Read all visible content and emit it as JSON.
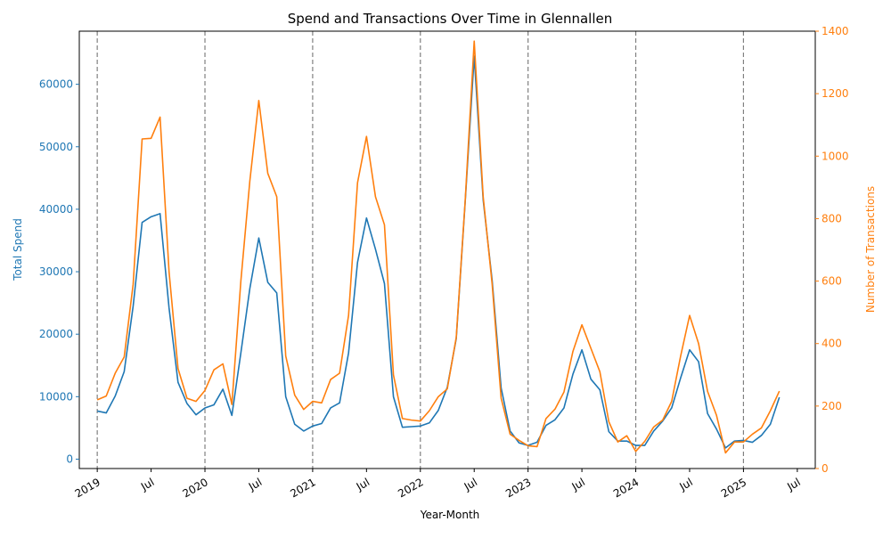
{
  "chart_data": {
    "type": "line",
    "title": "Spend and Transactions Over Time in Glennallen",
    "xlabel": "Year-Month",
    "x_tick_labels": [
      "2019",
      "Jul",
      "2020",
      "Jul",
      "2021",
      "Jul",
      "2022",
      "Jul",
      "2023",
      "Jul",
      "2024",
      "Jul",
      "2025",
      "Jul"
    ],
    "x_tick_months": [
      0,
      6,
      12,
      18,
      24,
      30,
      36,
      42,
      48,
      54,
      60,
      66,
      72,
      78
    ],
    "year_lines_months": [
      0,
      12,
      24,
      36,
      48,
      60,
      72
    ],
    "xlim_months": [
      -2,
      80
    ],
    "x_start": "2019-01",
    "left_axis": {
      "label": "Total Spend",
      "color": "#1f77b4",
      "ylim": [
        -1500,
        68500
      ],
      "ticks": [
        0,
        10000,
        20000,
        30000,
        40000,
        50000,
        60000
      ],
      "tick_labels": [
        "0",
        "10000",
        "20000",
        "30000",
        "40000",
        "50000",
        "60000"
      ]
    },
    "right_axis": {
      "label": "Number of Transactions",
      "color": "#ff7f0e",
      "ylim": [
        0,
        1400
      ],
      "ticks": [
        0,
        200,
        400,
        600,
        800,
        1000,
        1200,
        1400
      ],
      "tick_labels": [
        "0",
        "200",
        "400",
        "600",
        "800",
        "1000",
        "1200",
        "1400"
      ]
    },
    "series": [
      {
        "axis": "left",
        "color": "#1f77b4",
        "values": [
          7700,
          7400,
          10100,
          14000,
          24500,
          37900,
          38800,
          39300,
          24200,
          12300,
          8900,
          7100,
          8200,
          8700,
          11200,
          7000,
          17000,
          27300,
          35400,
          28300,
          26600,
          10000,
          5600,
          4500,
          5300,
          5700,
          8200,
          9000,
          17000,
          31500,
          38600,
          33600,
          28100,
          10000,
          5100,
          5200,
          5300,
          5800,
          7800,
          11500,
          19300,
          41300,
          64500,
          41500,
          28600,
          11400,
          4500,
          2600,
          2200,
          2700,
          5400,
          6300,
          8200,
          13600,
          17500,
          12800,
          11100,
          4400,
          2900,
          2900,
          2200,
          2200,
          4500,
          6100,
          8200,
          13000,
          17500,
          15600,
          7300,
          4800,
          1800,
          2900,
          3000,
          2700,
          3800,
          5600,
          9900
        ]
      },
      {
        "axis": "right",
        "color": "#ff7f0e",
        "values": [
          220,
          232,
          305,
          357,
          590,
          1055,
          1057,
          1125,
          630,
          320,
          225,
          215,
          250,
          316,
          335,
          205,
          600,
          920,
          1178,
          945,
          870,
          360,
          235,
          189,
          215,
          210,
          285,
          305,
          490,
          915,
          1063,
          870,
          780,
          300,
          160,
          155,
          152,
          185,
          230,
          255,
          420,
          860,
          1368,
          870,
          590,
          225,
          110,
          90,
          73,
          70,
          160,
          190,
          245,
          375,
          460,
          385,
          310,
          150,
          85,
          105,
          55,
          87,
          133,
          155,
          215,
          360,
          490,
          400,
          247,
          170,
          50,
          85,
          85,
          110,
          130,
          185,
          248
        ]
      }
    ]
  }
}
